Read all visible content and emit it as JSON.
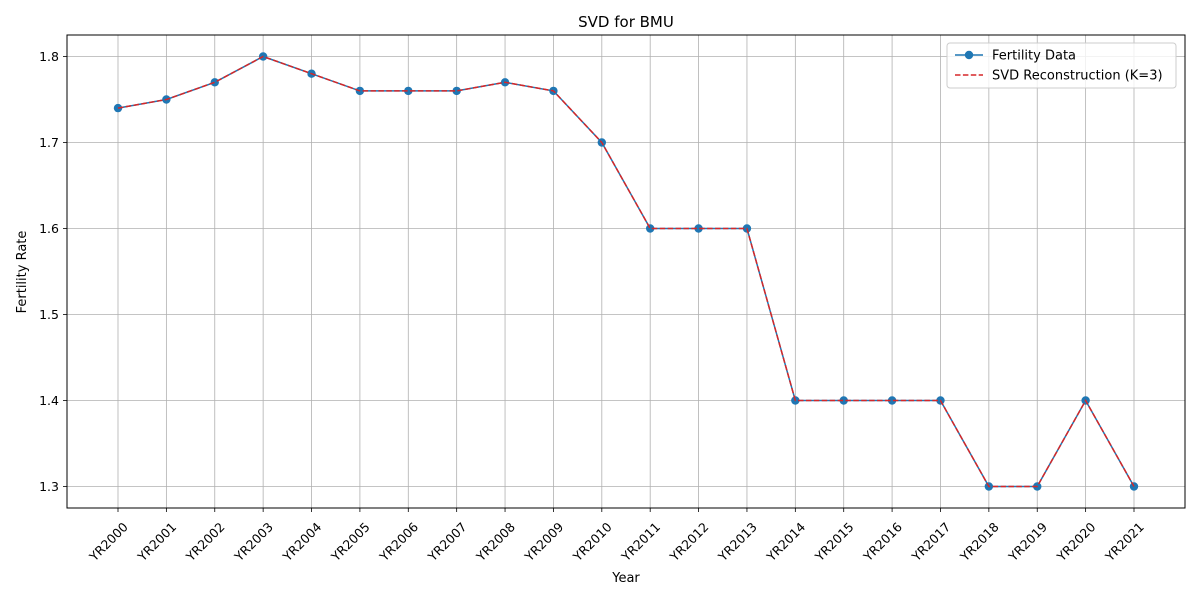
{
  "chart_data": {
    "type": "line",
    "title": "SVD for BMU",
    "xlabel": "Year",
    "ylabel": "Fertility Rate",
    "categories": [
      "YR2000",
      "YR2001",
      "YR2002",
      "YR2003",
      "YR2004",
      "YR2005",
      "YR2006",
      "YR2007",
      "YR2008",
      "YR2009",
      "YR2010",
      "YR2011",
      "YR2012",
      "YR2013",
      "YR2014",
      "YR2015",
      "YR2016",
      "YR2017",
      "YR2018",
      "YR2019",
      "YR2020",
      "YR2021"
    ],
    "series": [
      {
        "name": "Fertility Data",
        "color": "#1f77b4",
        "style": "solid-markers",
        "values": [
          1.74,
          1.75,
          1.77,
          1.8,
          1.78,
          1.76,
          1.76,
          1.76,
          1.77,
          1.76,
          1.7,
          1.6,
          1.6,
          1.6,
          1.4,
          1.4,
          1.4,
          1.4,
          1.3,
          1.3,
          1.4,
          1.3
        ]
      },
      {
        "name": "SVD Reconstruction (K=3)",
        "color": "#d62728",
        "style": "dashed",
        "values": [
          1.74,
          1.75,
          1.77,
          1.8,
          1.78,
          1.76,
          1.76,
          1.76,
          1.77,
          1.76,
          1.7,
          1.6,
          1.6,
          1.6,
          1.4,
          1.4,
          1.4,
          1.4,
          1.3,
          1.3,
          1.4,
          1.3
        ]
      }
    ],
    "ylim": [
      1.275,
      1.825
    ],
    "yticks": [
      1.3,
      1.4,
      1.5,
      1.6,
      1.7,
      1.8
    ],
    "ytick_labels": [
      "1.3",
      "1.4",
      "1.5",
      "1.6",
      "1.7",
      "1.8"
    ],
    "grid": true,
    "legend": "top-right"
  }
}
